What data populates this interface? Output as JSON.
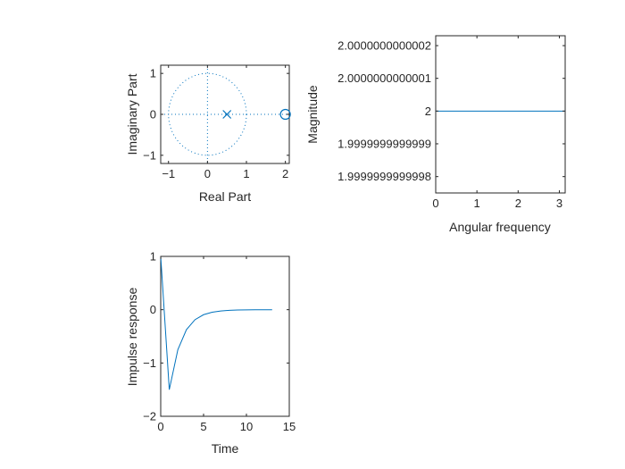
{
  "chart_data": [
    {
      "type": "scatter",
      "subtype": "pole-zero",
      "xlabel": "Real Part",
      "ylabel": "Imaginary Part",
      "xlim": [
        -1.2,
        2.1
      ],
      "ylim": [
        -1.2,
        1.2
      ],
      "xticks": [
        -1,
        0,
        1,
        2
      ],
      "yticks": [
        -1,
        0,
        1
      ],
      "unit_circle": true,
      "poles": [
        {
          "re": 0.5,
          "im": 0
        }
      ],
      "zeros": [
        {
          "re": 2,
          "im": 0
        }
      ],
      "color": "#0072BD"
    },
    {
      "type": "line",
      "xlabel": "Angular frequency",
      "ylabel": "Magnitude",
      "xlim": [
        0,
        3.1416
      ],
      "xticks": [
        0,
        1,
        2,
        3
      ],
      "yticks": [
        {
          "value": 2.0000000000002,
          "label": "2.0000000000002"
        },
        {
          "value": 2.0000000000001,
          "label": "2.0000000000001"
        },
        {
          "value": 2.0,
          "label": "2"
        },
        {
          "value": 1.9999999999999,
          "label": "1.9999999999999"
        },
        {
          "value": 1.9999999999998,
          "label": "1.9999999999998"
        }
      ],
      "ylim": [
        1.99999999999975,
        2.00000000000023
      ],
      "series": [
        {
          "x": [
            0,
            3.1416
          ],
          "values": [
            2,
            2
          ]
        }
      ],
      "color": "#0072BD"
    },
    {
      "type": "line",
      "xlabel": "Time",
      "ylabel": "Impulse response",
      "xlim": [
        0,
        15
      ],
      "ylim": [
        -2,
        1
      ],
      "xticks": [
        0,
        5,
        10,
        15
      ],
      "yticks": [
        -2,
        -1,
        0,
        1
      ],
      "series": [
        {
          "x": [
            0,
            1,
            2,
            3,
            4,
            5,
            6,
            7,
            8,
            9,
            10,
            11,
            12,
            13
          ],
          "values": [
            1,
            -1.5,
            -0.75,
            -0.375,
            -0.1875,
            -0.09375,
            -0.046875,
            -0.0234375,
            -0.01171875,
            -0.005859375,
            -0.0029296875,
            -0.00146484375,
            -0.000732421875,
            -0.0003662109375
          ]
        }
      ],
      "color": "#0072BD"
    }
  ]
}
